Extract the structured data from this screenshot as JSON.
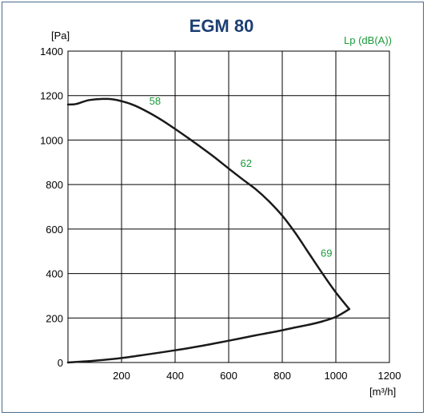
{
  "chart_data": {
    "type": "line",
    "title": "EGM 80",
    "ylabel": "[Pa]",
    "xlabel": "[m³/h]",
    "xlim": [
      0,
      1200
    ],
    "ylim": [
      0,
      1400
    ],
    "xticks": [
      200,
      400,
      600,
      800,
      1000,
      1200
    ],
    "yticks": [
      0,
      200,
      400,
      600,
      800,
      1000,
      1200,
      1400
    ],
    "grid": true,
    "sound_label": "Lp (dB(A))",
    "curve_color": "#1a1a1a",
    "label_color": "#1a9a3a",
    "title_color": "#1d3f73",
    "series": [
      {
        "x": [
          0,
          30,
          80,
          150,
          200,
          250,
          300,
          350,
          400,
          450,
          500,
          550,
          600,
          650,
          700,
          750,
          800,
          850,
          900,
          950,
          1000,
          1050
        ],
        "y": [
          1160,
          1162,
          1180,
          1185,
          1175,
          1155,
          1125,
          1090,
          1050,
          1008,
          965,
          920,
          872,
          825,
          780,
          725,
          660,
          580,
          490,
          400,
          315,
          240
        ]
      },
      {
        "x": [
          1050,
          1000,
          950,
          900,
          850,
          800,
          750,
          700,
          650,
          600,
          500,
          400,
          300,
          200,
          100,
          0
        ],
        "y": [
          240,
          205,
          185,
          170,
          158,
          145,
          133,
          122,
          110,
          98,
          75,
          55,
          37,
          20,
          8,
          0
        ]
      }
    ],
    "annotations": [
      {
        "text": "58",
        "x": 325,
        "y": 1160
      },
      {
        "text": "62",
        "x": 665,
        "y": 880
      },
      {
        "text": "69",
        "x": 965,
        "y": 475
      }
    ]
  }
}
